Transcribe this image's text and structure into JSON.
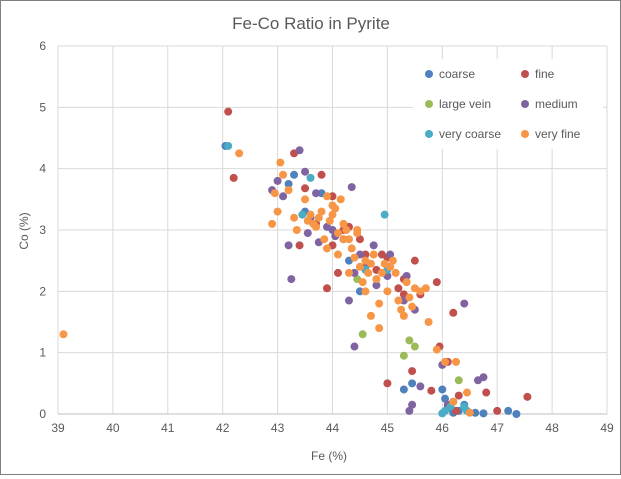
{
  "chart_data": {
    "type": "scatter",
    "title": "Fe-Co Ratio in Pyrite",
    "xlabel": "Fe (%)",
    "ylabel": "Co (%)",
    "xlim": [
      39,
      49
    ],
    "ylim": [
      0,
      6
    ],
    "x_ticks": [
      39,
      40,
      41,
      42,
      43,
      44,
      45,
      46,
      47,
      48,
      49
    ],
    "y_ticks": [
      0,
      1,
      2,
      3,
      4,
      5,
      6
    ],
    "grid": true,
    "legend_placement": "top-right",
    "series": [
      {
        "name": "coarse",
        "color": "#4f81bd",
        "points": [
          [
            42.05,
            4.37
          ],
          [
            43.2,
            3.75
          ],
          [
            43.5,
            3.3
          ],
          [
            43.3,
            3.9
          ],
          [
            43.8,
            3.6
          ],
          [
            44.3,
            2.5
          ],
          [
            44.5,
            2.0
          ],
          [
            46.0,
            0.4
          ],
          [
            46.1,
            0.1
          ],
          [
            46.2,
            0.02
          ],
          [
            46.4,
            0.15
          ],
          [
            46.3,
            0.05
          ],
          [
            46.6,
            0.02
          ],
          [
            46.75,
            0.01
          ],
          [
            47.2,
            0.05
          ],
          [
            47.35,
            0.0
          ],
          [
            45.3,
            0.4
          ],
          [
            45.45,
            0.5
          ],
          [
            46.05,
            0.25
          ]
        ]
      },
      {
        "name": "fine",
        "color": "#c0504d",
        "points": [
          [
            42.1,
            4.93
          ],
          [
            42.2,
            3.85
          ],
          [
            43.3,
            4.25
          ],
          [
            43.5,
            3.68
          ],
          [
            43.8,
            3.9
          ],
          [
            44.0,
            3.55
          ],
          [
            44.2,
            3.0
          ],
          [
            44.5,
            2.85
          ],
          [
            44.6,
            2.6
          ],
          [
            44.8,
            2.35
          ],
          [
            45.0,
            2.55
          ],
          [
            45.2,
            2.05
          ],
          [
            45.3,
            1.95
          ],
          [
            45.5,
            2.5
          ],
          [
            45.9,
            2.15
          ],
          [
            45.95,
            1.1
          ],
          [
            46.1,
            0.85
          ],
          [
            46.2,
            1.65
          ],
          [
            45.6,
            1.95
          ],
          [
            43.9,
            2.05
          ],
          [
            44.1,
            2.3
          ],
          [
            44.3,
            3.05
          ],
          [
            44.0,
            2.75
          ],
          [
            43.7,
            3.1
          ],
          [
            43.4,
            2.75
          ],
          [
            45.0,
            0.5
          ],
          [
            45.45,
            0.7
          ],
          [
            46.3,
            0.3
          ],
          [
            46.8,
            0.35
          ],
          [
            47.0,
            0.05
          ],
          [
            47.55,
            0.28
          ],
          [
            46.25,
            0.05
          ],
          [
            45.8,
            0.38
          ],
          [
            44.9,
            2.6
          ],
          [
            45.3,
            2.2
          ]
        ]
      },
      {
        "name": "large vein",
        "color": "#9bbb59",
        "points": [
          [
            44.45,
            2.2
          ],
          [
            44.55,
            1.3
          ],
          [
            45.3,
            0.95
          ],
          [
            45.4,
            1.2
          ],
          [
            45.5,
            1.1
          ],
          [
            46.3,
            0.55
          ]
        ]
      },
      {
        "name": "medium",
        "color": "#8064a2",
        "points": [
          [
            42.9,
            3.65
          ],
          [
            43.0,
            3.8
          ],
          [
            43.1,
            3.55
          ],
          [
            43.2,
            2.75
          ],
          [
            43.25,
            2.2
          ],
          [
            43.4,
            4.3
          ],
          [
            43.5,
            3.95
          ],
          [
            43.6,
            3.2
          ],
          [
            43.7,
            3.6
          ],
          [
            43.75,
            2.8
          ],
          [
            43.9,
            3.05
          ],
          [
            44.0,
            3.0
          ],
          [
            44.05,
            2.9
          ],
          [
            44.2,
            2.85
          ],
          [
            44.35,
            3.7
          ],
          [
            44.4,
            2.3
          ],
          [
            44.5,
            2.6
          ],
          [
            44.6,
            2.4
          ],
          [
            44.75,
            2.75
          ],
          [
            44.8,
            2.1
          ],
          [
            45.0,
            2.25
          ],
          [
            45.05,
            2.6
          ],
          [
            45.3,
            1.85
          ],
          [
            45.35,
            2.25
          ],
          [
            45.45,
            0.15
          ],
          [
            45.5,
            1.7
          ],
          [
            44.4,
            1.1
          ],
          [
            45.4,
            0.05
          ],
          [
            45.6,
            0.45
          ],
          [
            46.0,
            0.8
          ],
          [
            46.1,
            0.15
          ],
          [
            46.2,
            0.2
          ],
          [
            46.4,
            1.8
          ],
          [
            46.65,
            0.55
          ],
          [
            46.75,
            0.6
          ],
          [
            43.55,
            2.95
          ],
          [
            44.3,
            1.85
          ]
        ]
      },
      {
        "name": "very coarse",
        "color": "#4bacc6",
        "points": [
          [
            42.1,
            4.37
          ],
          [
            43.45,
            3.25
          ],
          [
            43.6,
            3.85
          ],
          [
            44.6,
            2.35
          ],
          [
            44.95,
            3.25
          ],
          [
            45.0,
            2.35
          ],
          [
            46.0,
            0.01
          ],
          [
            46.05,
            0.05
          ],
          [
            46.15,
            0.12
          ],
          [
            46.4,
            0.12
          ],
          [
            46.45,
            0.05
          ]
        ]
      },
      {
        "name": "very fine",
        "color": "#f79646",
        "points": [
          [
            39.1,
            1.3
          ],
          [
            42.3,
            4.25
          ],
          [
            42.9,
            3.1
          ],
          [
            42.95,
            3.6
          ],
          [
            43.0,
            3.3
          ],
          [
            43.05,
            4.1
          ],
          [
            43.1,
            3.9
          ],
          [
            43.2,
            3.65
          ],
          [
            43.3,
            3.2
          ],
          [
            43.35,
            3.0
          ],
          [
            43.5,
            3.5
          ],
          [
            43.55,
            3.15
          ],
          [
            43.6,
            3.25
          ],
          [
            43.65,
            3.1
          ],
          [
            43.7,
            3.05
          ],
          [
            43.75,
            3.2
          ],
          [
            43.8,
            3.3
          ],
          [
            43.85,
            2.85
          ],
          [
            43.9,
            2.7
          ],
          [
            43.95,
            3.15
          ],
          [
            44.0,
            3.25
          ],
          [
            44.05,
            3.35
          ],
          [
            44.1,
            2.95
          ],
          [
            44.15,
            3.5
          ],
          [
            44.2,
            2.85
          ],
          [
            44.25,
            3.0
          ],
          [
            44.3,
            2.85
          ],
          [
            44.35,
            2.7
          ],
          [
            44.4,
            2.55
          ],
          [
            44.45,
            2.95
          ],
          [
            44.5,
            2.4
          ],
          [
            44.55,
            2.15
          ],
          [
            44.6,
            2.5
          ],
          [
            44.65,
            2.3
          ],
          [
            44.7,
            2.45
          ],
          [
            44.75,
            2.6
          ],
          [
            44.8,
            2.2
          ],
          [
            44.85,
            1.8
          ],
          [
            44.9,
            2.3
          ],
          [
            44.95,
            2.45
          ],
          [
            45.0,
            2.0
          ],
          [
            45.05,
            2.4
          ],
          [
            45.1,
            2.5
          ],
          [
            45.15,
            2.3
          ],
          [
            45.2,
            1.85
          ],
          [
            45.25,
            1.7
          ],
          [
            45.3,
            1.6
          ],
          [
            45.35,
            2.15
          ],
          [
            45.4,
            1.9
          ],
          [
            45.45,
            1.75
          ],
          [
            45.5,
            2.05
          ],
          [
            45.6,
            2.0
          ],
          [
            45.7,
            2.05
          ],
          [
            45.75,
            1.5
          ],
          [
            44.7,
            1.6
          ],
          [
            44.85,
            1.4
          ],
          [
            44.6,
            2.0
          ],
          [
            44.2,
            3.1
          ],
          [
            44.0,
            3.4
          ],
          [
            43.9,
            3.55
          ],
          [
            44.45,
            3.0
          ],
          [
            46.05,
            0.85
          ],
          [
            46.2,
            0.2
          ],
          [
            46.25,
            0.85
          ],
          [
            46.45,
            0.35
          ],
          [
            46.5,
            0.02
          ],
          [
            45.9,
            1.05
          ],
          [
            44.3,
            2.3
          ],
          [
            44.1,
            2.6
          ]
        ]
      }
    ]
  }
}
